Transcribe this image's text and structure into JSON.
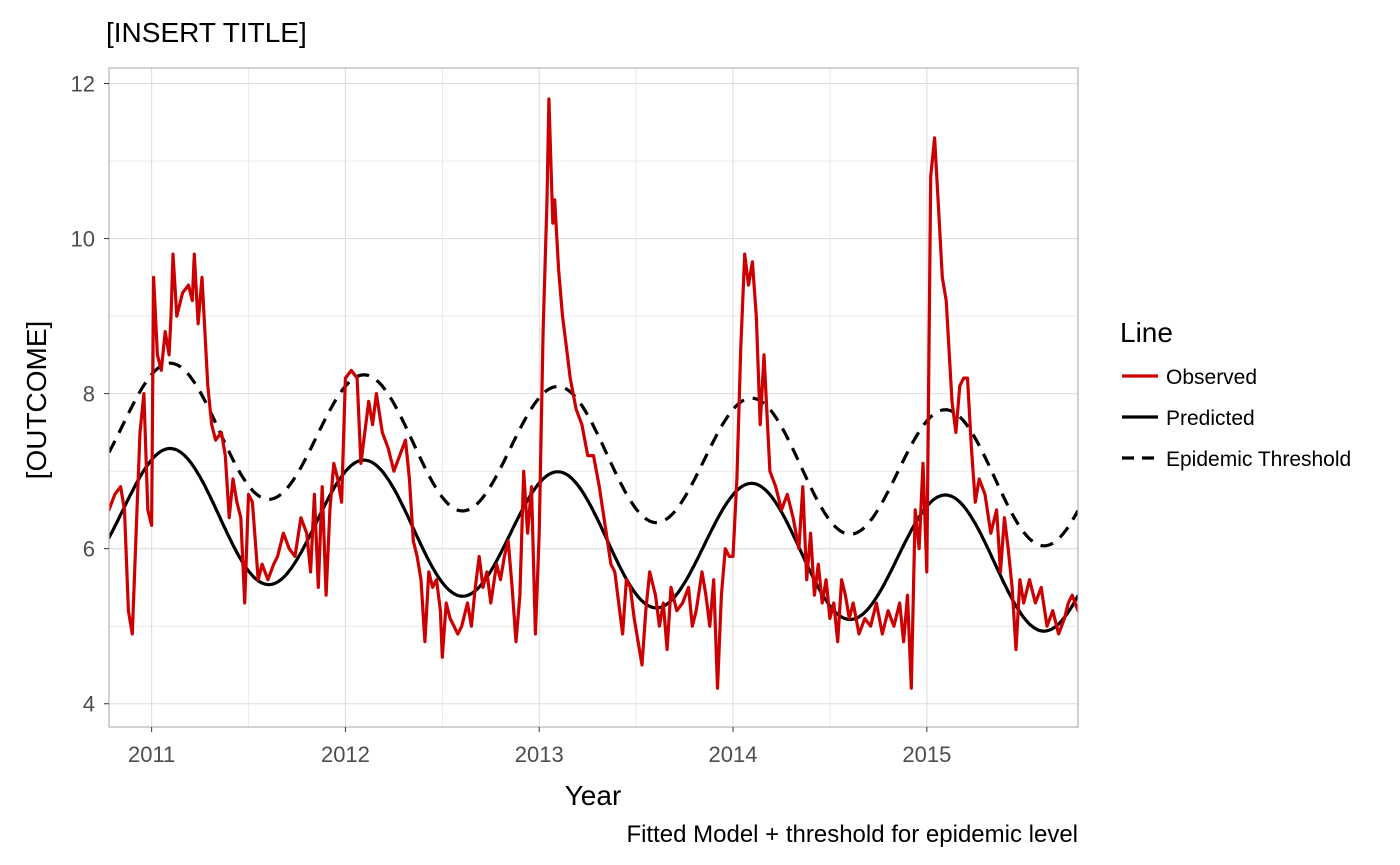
{
  "chart_data": {
    "type": "line",
    "title": "[INSERT TITLE]",
    "xlabel": "Year",
    "ylabel": "[OUTCOME]",
    "caption": "Fitted Model + threshold for epidemic level",
    "xlim": [
      2010.78,
      2015.78
    ],
    "ylim": [
      3.7,
      12.2
    ],
    "x_ticks": [
      2011,
      2012,
      2013,
      2014,
      2015
    ],
    "y_ticks": [
      4,
      6,
      8,
      10,
      12
    ],
    "grid": true,
    "legend": {
      "title": "Line",
      "position": "right",
      "entries": [
        {
          "label": "Observed",
          "color": "#cc0000",
          "dash": "solid"
        },
        {
          "label": "Predicted",
          "color": "#000000",
          "dash": "solid"
        },
        {
          "label": "Epidemic Threshold",
          "color": "#000000",
          "dash": "dashed"
        }
      ]
    },
    "series": [
      {
        "name": "Observed",
        "color": "#cc0000",
        "dash": "solid",
        "points": [
          [
            2010.78,
            6.5
          ],
          [
            2010.81,
            6.7
          ],
          [
            2010.84,
            6.8
          ],
          [
            2010.86,
            6.5
          ],
          [
            2010.88,
            5.2
          ],
          [
            2010.9,
            4.9
          ],
          [
            2010.92,
            6.2
          ],
          [
            2010.94,
            7.5
          ],
          [
            2010.96,
            8.0
          ],
          [
            2010.98,
            6.5
          ],
          [
            2011.0,
            6.3
          ],
          [
            2011.01,
            9.5
          ],
          [
            2011.03,
            8.5
          ],
          [
            2011.05,
            8.3
          ],
          [
            2011.07,
            8.8
          ],
          [
            2011.09,
            8.5
          ],
          [
            2011.1,
            9.0
          ],
          [
            2011.11,
            9.8
          ],
          [
            2011.13,
            9.0
          ],
          [
            2011.16,
            9.3
          ],
          [
            2011.19,
            9.4
          ],
          [
            2011.21,
            9.2
          ],
          [
            2011.22,
            9.8
          ],
          [
            2011.24,
            8.9
          ],
          [
            2011.26,
            9.5
          ],
          [
            2011.29,
            8.1
          ],
          [
            2011.31,
            7.6
          ],
          [
            2011.33,
            7.4
          ],
          [
            2011.36,
            7.5
          ],
          [
            2011.38,
            7.2
          ],
          [
            2011.4,
            6.4
          ],
          [
            2011.42,
            6.9
          ],
          [
            2011.44,
            6.6
          ],
          [
            2011.46,
            6.4
          ],
          [
            2011.48,
            5.3
          ],
          [
            2011.5,
            6.7
          ],
          [
            2011.52,
            6.6
          ],
          [
            2011.55,
            5.6
          ],
          [
            2011.57,
            5.8
          ],
          [
            2011.6,
            5.6
          ],
          [
            2011.63,
            5.8
          ],
          [
            2011.65,
            5.9
          ],
          [
            2011.68,
            6.2
          ],
          [
            2011.71,
            6.0
          ],
          [
            2011.74,
            5.9
          ],
          [
            2011.77,
            6.4
          ],
          [
            2011.8,
            6.2
          ],
          [
            2011.82,
            5.7
          ],
          [
            2011.84,
            6.7
          ],
          [
            2011.86,
            5.5
          ],
          [
            2011.88,
            6.8
          ],
          [
            2011.9,
            5.4
          ],
          [
            2011.92,
            6.5
          ],
          [
            2011.94,
            7.1
          ],
          [
            2011.96,
            6.9
          ],
          [
            2011.98,
            6.6
          ],
          [
            2012.0,
            8.2
          ],
          [
            2012.03,
            8.3
          ],
          [
            2012.06,
            8.2
          ],
          [
            2012.08,
            7.1
          ],
          [
            2012.1,
            7.5
          ],
          [
            2012.12,
            7.9
          ],
          [
            2012.14,
            7.6
          ],
          [
            2012.16,
            8.0
          ],
          [
            2012.19,
            7.5
          ],
          [
            2012.22,
            7.3
          ],
          [
            2012.25,
            7.0
          ],
          [
            2012.28,
            7.2
          ],
          [
            2012.31,
            7.4
          ],
          [
            2012.33,
            6.9
          ],
          [
            2012.35,
            6.1
          ],
          [
            2012.37,
            5.9
          ],
          [
            2012.39,
            5.6
          ],
          [
            2012.41,
            4.8
          ],
          [
            2012.43,
            5.7
          ],
          [
            2012.45,
            5.5
          ],
          [
            2012.47,
            5.6
          ],
          [
            2012.49,
            5.2
          ],
          [
            2012.5,
            4.6
          ],
          [
            2012.52,
            5.3
          ],
          [
            2012.54,
            5.1
          ],
          [
            2012.56,
            5.0
          ],
          [
            2012.58,
            4.9
          ],
          [
            2012.6,
            5.0
          ],
          [
            2012.63,
            5.3
          ],
          [
            2012.65,
            5.0
          ],
          [
            2012.67,
            5.5
          ],
          [
            2012.69,
            5.9
          ],
          [
            2012.71,
            5.5
          ],
          [
            2012.73,
            5.7
          ],
          [
            2012.75,
            5.3
          ],
          [
            2012.78,
            5.8
          ],
          [
            2012.8,
            5.6
          ],
          [
            2012.82,
            5.9
          ],
          [
            2012.84,
            6.1
          ],
          [
            2012.86,
            5.5
          ],
          [
            2012.88,
            4.8
          ],
          [
            2012.9,
            5.4
          ],
          [
            2012.92,
            7.0
          ],
          [
            2012.94,
            6.2
          ],
          [
            2012.96,
            6.8
          ],
          [
            2012.98,
            4.9
          ],
          [
            2013.0,
            6.2
          ],
          [
            2013.02,
            8.8
          ],
          [
            2013.04,
            10.5
          ],
          [
            2013.05,
            11.8
          ],
          [
            2013.07,
            10.2
          ],
          [
            2013.08,
            10.5
          ],
          [
            2013.1,
            9.6
          ],
          [
            2013.12,
            9.0
          ],
          [
            2013.14,
            8.6
          ],
          [
            2013.16,
            8.2
          ],
          [
            2013.19,
            7.8
          ],
          [
            2013.22,
            7.6
          ],
          [
            2013.25,
            7.2
          ],
          [
            2013.28,
            7.2
          ],
          [
            2013.31,
            6.8
          ],
          [
            2013.34,
            6.3
          ],
          [
            2013.37,
            5.8
          ],
          [
            2013.39,
            5.7
          ],
          [
            2013.41,
            5.3
          ],
          [
            2013.43,
            4.9
          ],
          [
            2013.45,
            5.6
          ],
          [
            2013.47,
            5.5
          ],
          [
            2013.49,
            5.1
          ],
          [
            2013.51,
            4.8
          ],
          [
            2013.53,
            4.5
          ],
          [
            2013.55,
            5.2
          ],
          [
            2013.57,
            5.7
          ],
          [
            2013.6,
            5.4
          ],
          [
            2013.62,
            5.0
          ],
          [
            2013.64,
            5.3
          ],
          [
            2013.66,
            4.7
          ],
          [
            2013.68,
            5.5
          ],
          [
            2013.71,
            5.2
          ],
          [
            2013.74,
            5.3
          ],
          [
            2013.77,
            5.5
          ],
          [
            2013.79,
            5.0
          ],
          [
            2013.81,
            5.2
          ],
          [
            2013.84,
            5.7
          ],
          [
            2013.86,
            5.4
          ],
          [
            2013.88,
            5.0
          ],
          [
            2013.9,
            5.6
          ],
          [
            2013.92,
            4.2
          ],
          [
            2013.94,
            5.4
          ],
          [
            2013.96,
            6.0
          ],
          [
            2013.98,
            5.9
          ],
          [
            2014.0,
            5.9
          ],
          [
            2014.02,
            6.9
          ],
          [
            2014.04,
            8.6
          ],
          [
            2014.06,
            9.8
          ],
          [
            2014.08,
            9.4
          ],
          [
            2014.1,
            9.7
          ],
          [
            2014.12,
            9.0
          ],
          [
            2014.14,
            7.6
          ],
          [
            2014.16,
            8.5
          ],
          [
            2014.19,
            7.0
          ],
          [
            2014.22,
            6.8
          ],
          [
            2014.25,
            6.5
          ],
          [
            2014.28,
            6.7
          ],
          [
            2014.31,
            6.4
          ],
          [
            2014.34,
            6.0
          ],
          [
            2014.36,
            6.8
          ],
          [
            2014.38,
            5.6
          ],
          [
            2014.4,
            6.2
          ],
          [
            2014.42,
            5.4
          ],
          [
            2014.44,
            5.8
          ],
          [
            2014.46,
            5.3
          ],
          [
            2014.48,
            5.6
          ],
          [
            2014.5,
            5.1
          ],
          [
            2014.52,
            5.3
          ],
          [
            2014.54,
            4.8
          ],
          [
            2014.56,
            5.6
          ],
          [
            2014.58,
            5.4
          ],
          [
            2014.6,
            5.1
          ],
          [
            2014.62,
            5.3
          ],
          [
            2014.65,
            4.9
          ],
          [
            2014.68,
            5.1
          ],
          [
            2014.71,
            5.0
          ],
          [
            2014.74,
            5.3
          ],
          [
            2014.77,
            4.9
          ],
          [
            2014.8,
            5.2
          ],
          [
            2014.83,
            5.0
          ],
          [
            2014.86,
            5.3
          ],
          [
            2014.88,
            4.8
          ],
          [
            2014.9,
            5.4
          ],
          [
            2014.92,
            4.2
          ],
          [
            2014.94,
            6.5
          ],
          [
            2014.96,
            6.0
          ],
          [
            2014.98,
            7.1
          ],
          [
            2015.0,
            5.7
          ],
          [
            2015.02,
            10.8
          ],
          [
            2015.04,
            11.3
          ],
          [
            2015.06,
            10.4
          ],
          [
            2015.08,
            9.5
          ],
          [
            2015.1,
            9.2
          ],
          [
            2015.13,
            7.9
          ],
          [
            2015.15,
            7.5
          ],
          [
            2015.17,
            8.1
          ],
          [
            2015.19,
            8.2
          ],
          [
            2015.21,
            8.2
          ],
          [
            2015.23,
            7.3
          ],
          [
            2015.25,
            6.6
          ],
          [
            2015.27,
            6.9
          ],
          [
            2015.3,
            6.7
          ],
          [
            2015.33,
            6.2
          ],
          [
            2015.36,
            6.5
          ],
          [
            2015.38,
            5.7
          ],
          [
            2015.4,
            6.4
          ],
          [
            2015.42,
            6.0
          ],
          [
            2015.44,
            5.5
          ],
          [
            2015.46,
            4.7
          ],
          [
            2015.48,
            5.6
          ],
          [
            2015.5,
            5.3
          ],
          [
            2015.53,
            5.6
          ],
          [
            2015.56,
            5.3
          ],
          [
            2015.59,
            5.5
          ],
          [
            2015.62,
            5.0
          ],
          [
            2015.65,
            5.2
          ],
          [
            2015.68,
            4.9
          ],
          [
            2015.71,
            5.1
          ],
          [
            2015.73,
            5.3
          ],
          [
            2015.75,
            5.4
          ],
          [
            2015.78,
            5.2
          ]
        ]
      },
      {
        "name": "Predicted",
        "color": "#000000",
        "dash": "solid",
        "model": {
          "center_start": 6.5,
          "center_end": 5.75,
          "amplitude": 0.84,
          "peak": 0.1
        }
      },
      {
        "name": "Epidemic Threshold",
        "color": "#000000",
        "dash": "dashed",
        "model": {
          "center_start": 7.6,
          "center_end": 6.85,
          "amplitude": 0.84,
          "peak": 0.1
        }
      }
    ]
  }
}
